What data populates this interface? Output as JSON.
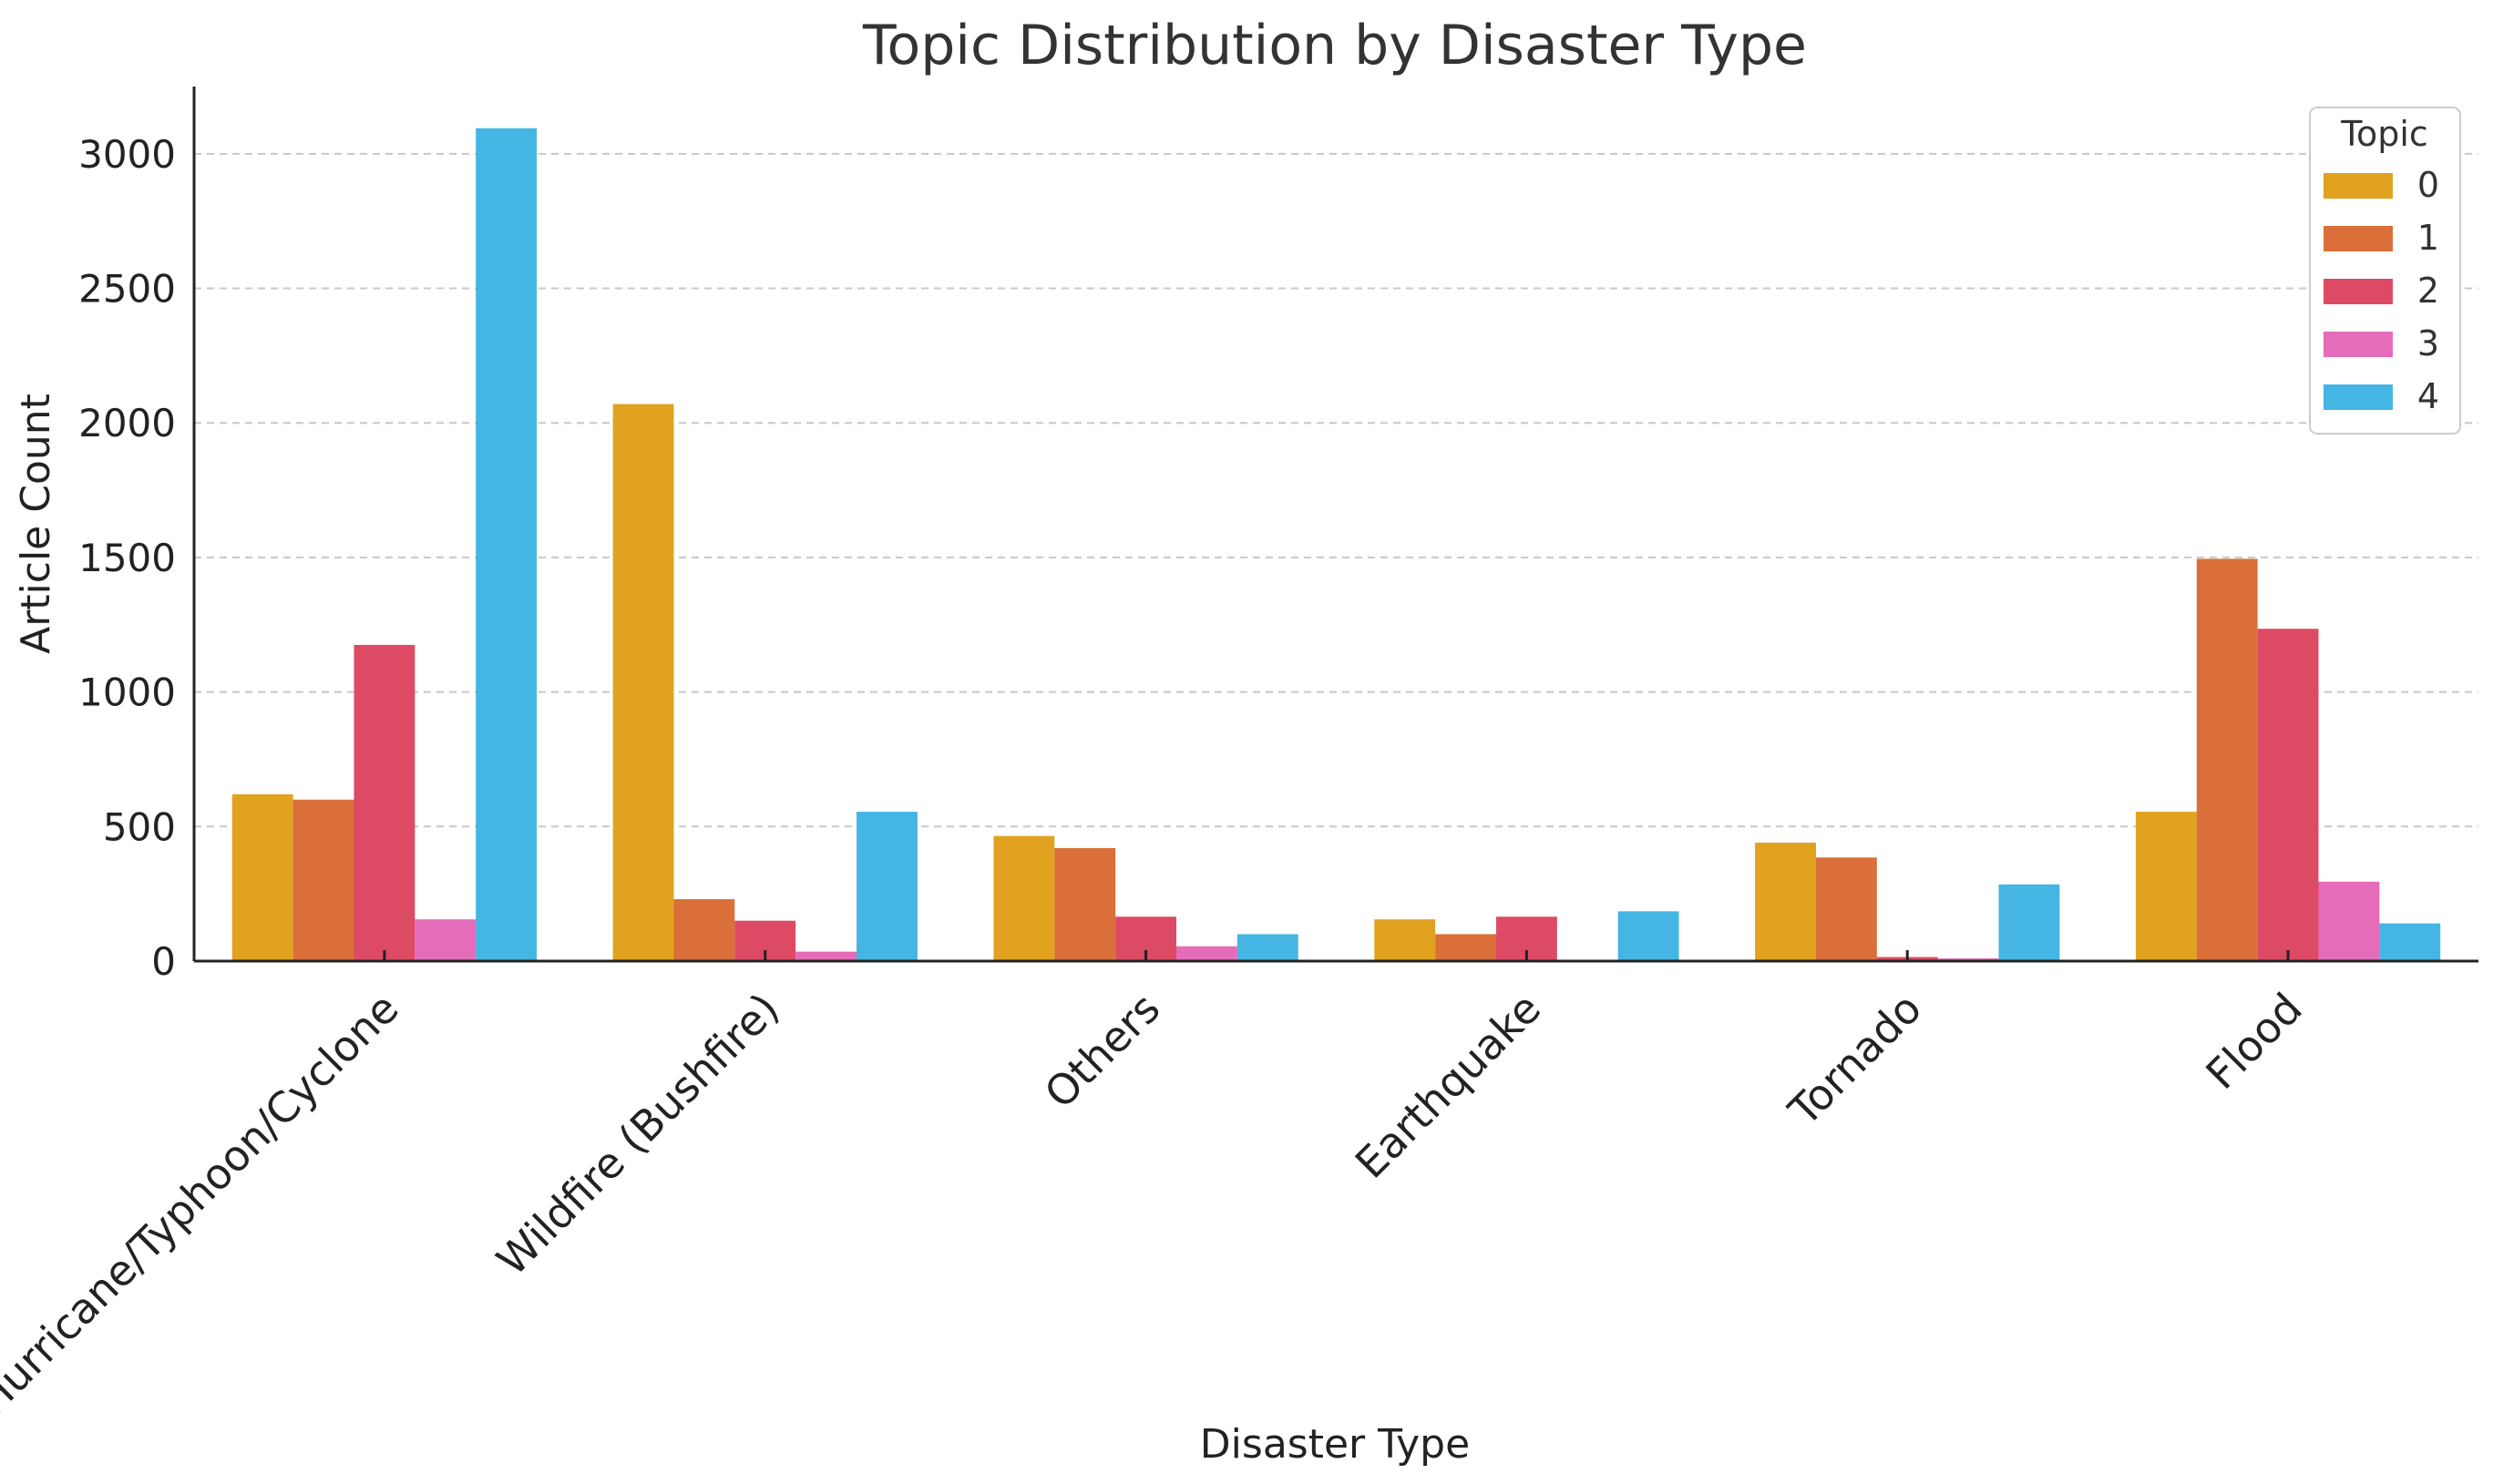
{
  "chart_data": {
    "type": "bar",
    "title": "Topic Distribution by Disaster Type",
    "xlabel": "Disaster Type",
    "ylabel": "Article Count",
    "ylim": [
      0,
      3250
    ],
    "yticks": [
      0,
      500,
      1000,
      1500,
      2000,
      2500,
      3000
    ],
    "grid": "y-dashed",
    "legend": {
      "title": "Topic",
      "placement": "top-right"
    },
    "categories": [
      "Hurricane/Typhoon/Cyclone",
      "Wildfire (Bushfire)",
      "Others",
      "Earthquake",
      "Tornado",
      "Flood"
    ],
    "series": [
      {
        "name": "0",
        "color": "#E0A21F",
        "values": [
          620,
          2070,
          465,
          155,
          440,
          555
        ]
      },
      {
        "name": "1",
        "color": "#DA6F39",
        "values": [
          600,
          230,
          420,
          100,
          385,
          1495
        ]
      },
      {
        "name": "2",
        "color": "#DD4A64",
        "values": [
          1175,
          150,
          165,
          165,
          15,
          1235
        ]
      },
      {
        "name": "3",
        "color": "#E46CB9",
        "values": [
          155,
          35,
          55,
          0,
          10,
          295
        ]
      },
      {
        "name": "4",
        "color": "#45B5E3",
        "values": [
          3095,
          555,
          100,
          185,
          285,
          140
        ]
      }
    ]
  }
}
